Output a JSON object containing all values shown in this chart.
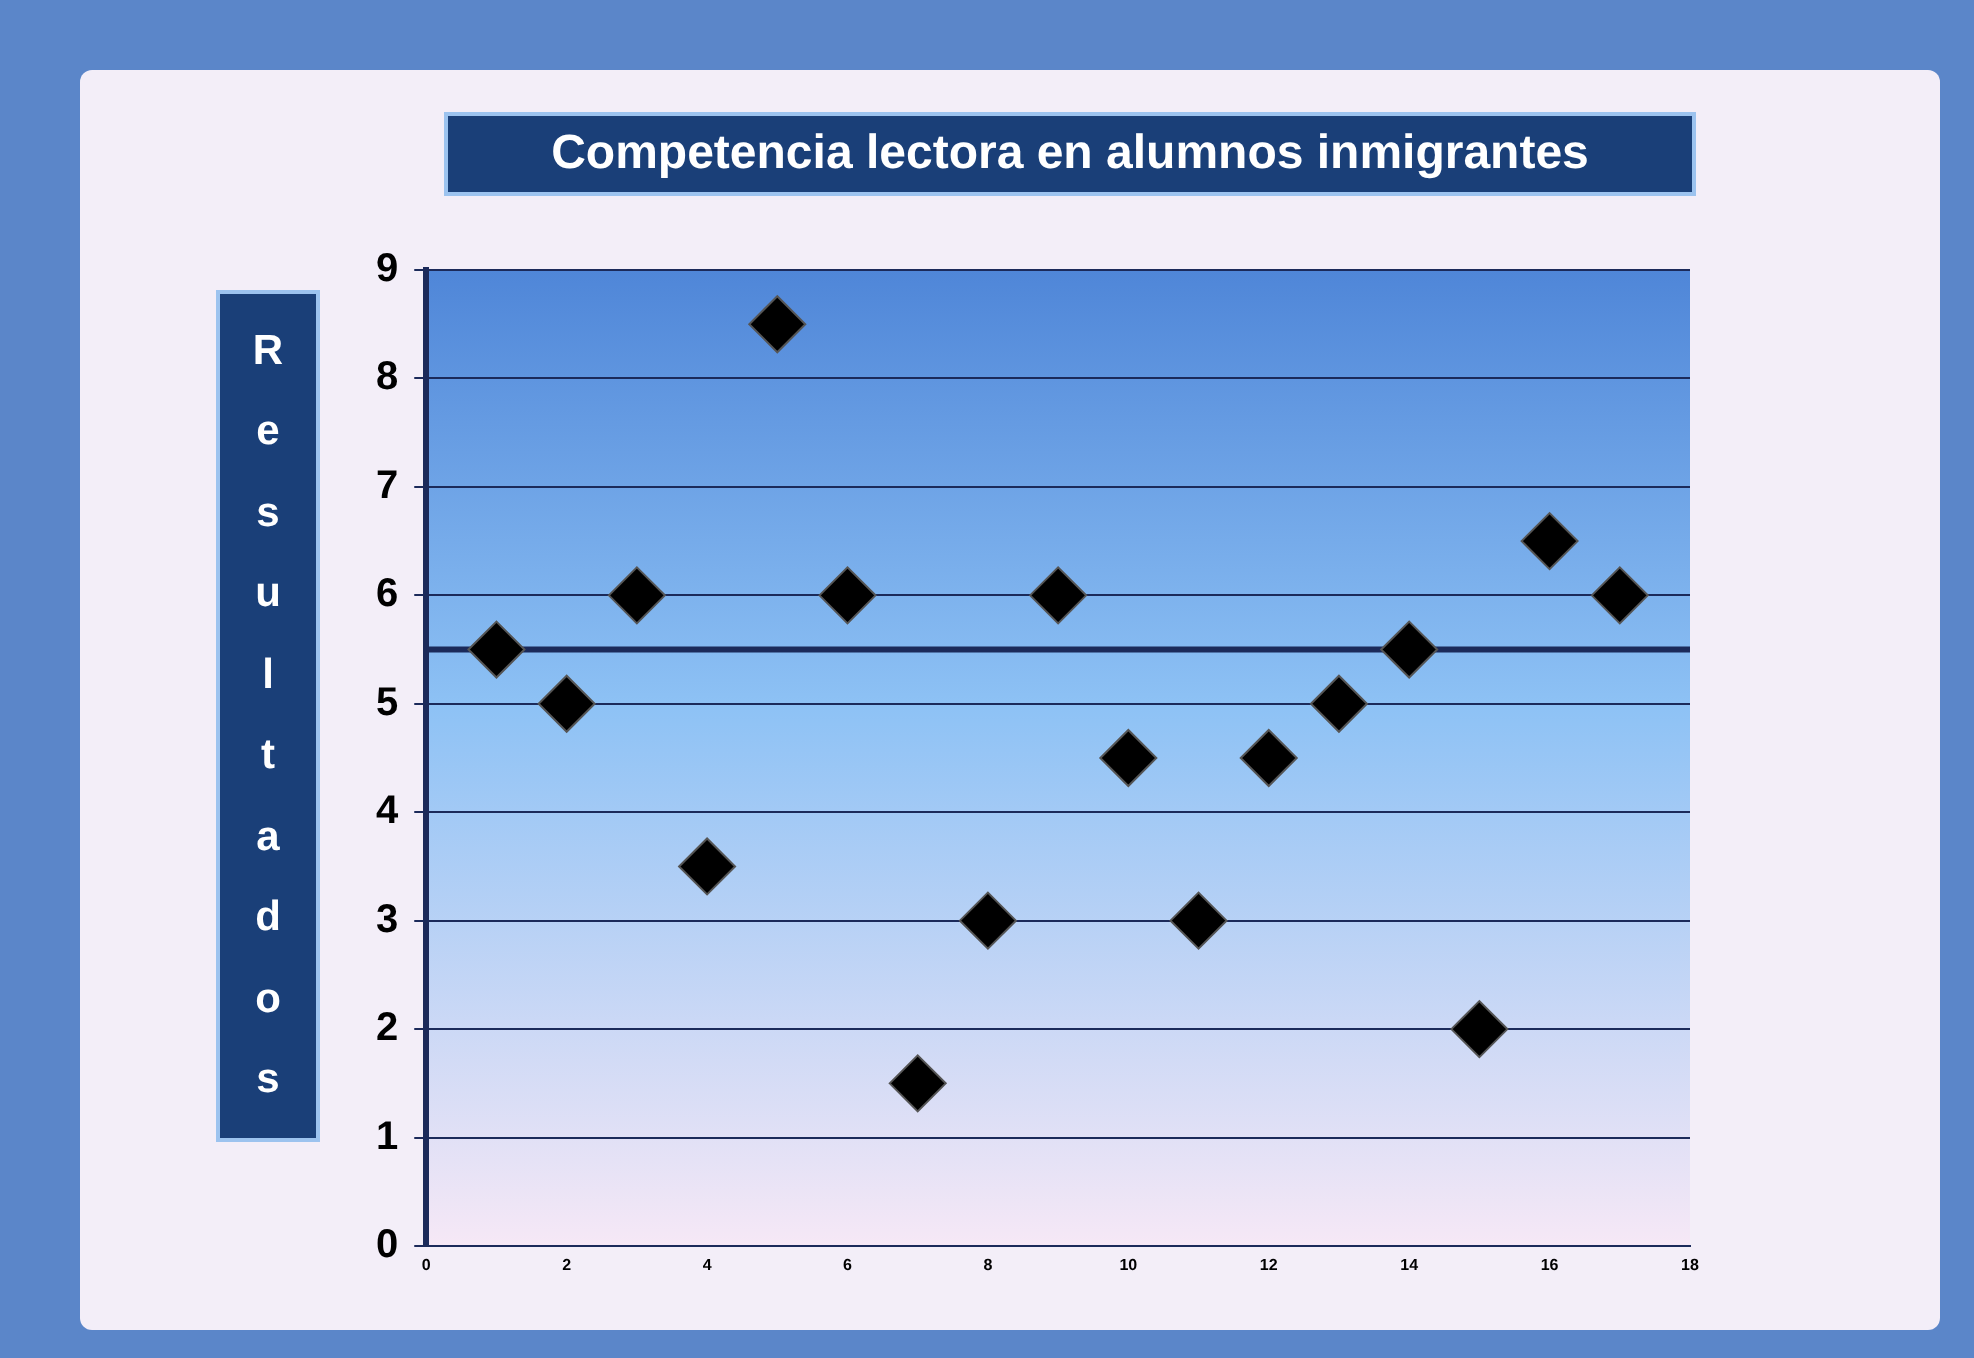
{
  "chart_data": {
    "type": "scatter",
    "title": "Competencia lectora en alumnos inmigrantes",
    "ylabel": "Resultados",
    "x": [
      1,
      2,
      3,
      4,
      5,
      6,
      7,
      8,
      9,
      10,
      11,
      12,
      13,
      14,
      15,
      16,
      17
    ],
    "series": [
      {
        "color": "#000000",
        "values": [
          5.5,
          5,
          6,
          3.5,
          8.5,
          6,
          1.5,
          3,
          6,
          4.5,
          3,
          4.5,
          5,
          5.5,
          2,
          6.5,
          6
        ]
      }
    ],
    "xlim": [
      0,
      18
    ],
    "xticks": [
      0,
      2,
      4,
      6,
      8,
      10,
      12,
      14,
      16,
      18
    ],
    "ylim": [
      0,
      9
    ],
    "yticks": [
      0,
      1,
      2,
      3,
      4,
      5,
      6,
      7,
      8,
      9
    ],
    "ref_lines": [
      {
        "axis": "y",
        "value": 5.5,
        "color": "#1b2a5a"
      }
    ],
    "grid": "y",
    "marker": "diamond",
    "legend": false
  }
}
